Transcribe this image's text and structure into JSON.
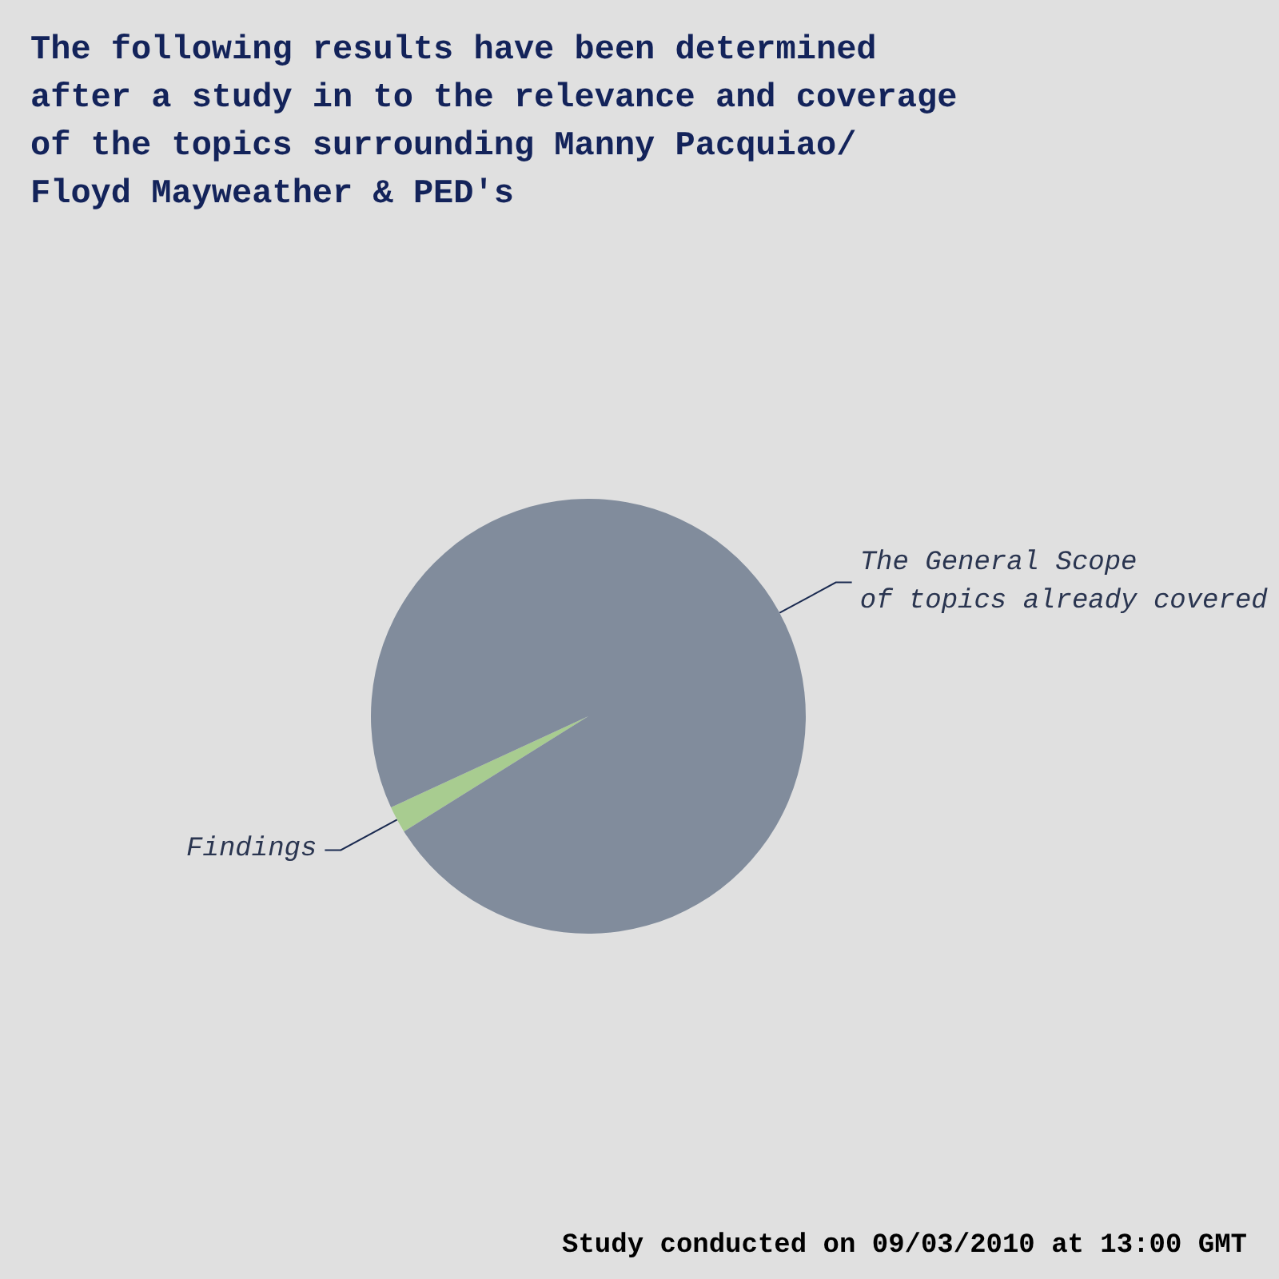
{
  "chart_data": {
    "type": "pie",
    "title": "The following results have been determined\nafter a study in to the relevance and coverage\nof the topics surrounding Manny Pacquiao/\nFloyd Mayweather & PED's",
    "categories": [
      "Findings",
      "The General Scope\nof topics already covered"
    ],
    "values": [
      2,
      98
    ],
    "colors": [
      "#a8cc90",
      "#818c9c"
    ],
    "annotations": [
      "Study conducted on 09/03/2010 at 13:00 GMT"
    ]
  }
}
